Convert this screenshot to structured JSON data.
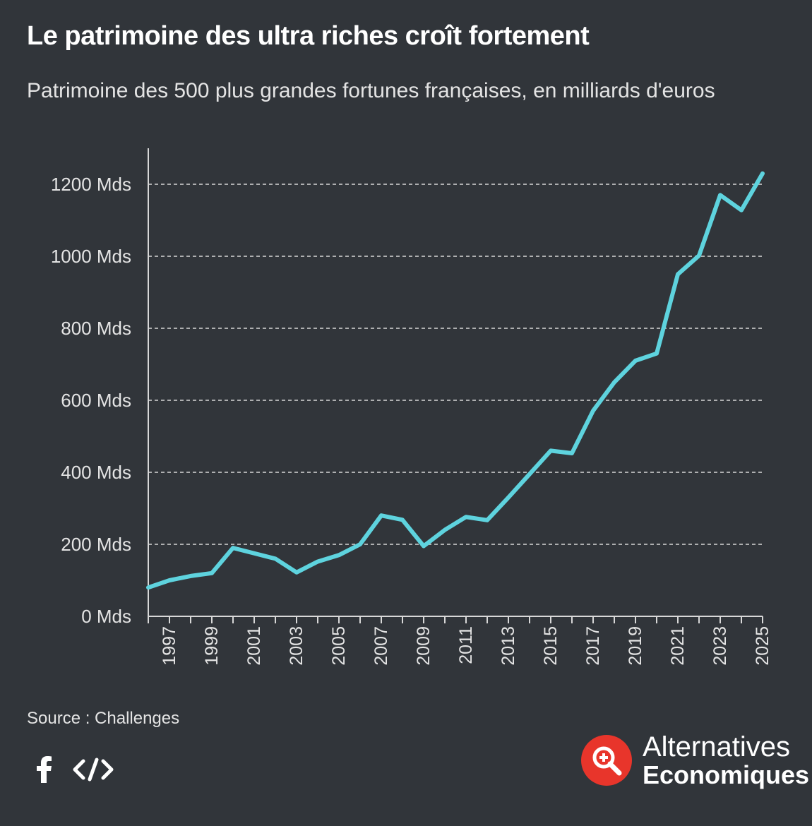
{
  "header": {
    "title": "Le patrimoine des ultra riches croît fortement",
    "subtitle": "Patrimoine des 500 plus grandes fortunes françaises, en milliards d'euros"
  },
  "footer": {
    "source": "Source : Challenges",
    "share_icons": [
      "facebook-icon",
      "embed-code-icon"
    ],
    "brand_line1": "Alternatives",
    "brand_line2": "Economiques"
  },
  "colors": {
    "background": "#31353a",
    "line": "#5ed3de",
    "grid": "#d8d8d8",
    "text": "#e4e4e4",
    "logo_red": "#e8352b"
  },
  "chart_data": {
    "type": "line",
    "title": "Le patrimoine des ultra riches croît fortement",
    "subtitle": "Patrimoine des 500 plus grandes fortunes françaises, en milliards d'euros",
    "x": [
      1996,
      1997,
      1998,
      1999,
      2000,
      2001,
      2002,
      2003,
      2004,
      2005,
      2006,
      2007,
      2008,
      2009,
      2010,
      2011,
      2012,
      2013,
      2014,
      2015,
      2016,
      2017,
      2018,
      2019,
      2020,
      2021,
      2022,
      2023,
      2024,
      2025
    ],
    "x_ticks": [
      1997,
      1999,
      2001,
      2003,
      2005,
      2007,
      2009,
      2011,
      2013,
      2015,
      2017,
      2019,
      2021,
      2023,
      2025
    ],
    "xlim": [
      1996,
      2025
    ],
    "series": [
      {
        "values": [
          80,
          100,
          112,
          120,
          190,
          175,
          160,
          122,
          152,
          170,
          200,
          280,
          268,
          195,
          240,
          276,
          267,
          330,
          395,
          460,
          453,
          571,
          650,
          710,
          730,
          950,
          1002,
          1170,
          1128,
          1230
        ]
      }
    ],
    "y_ticks": [
      0,
      200,
      400,
      600,
      800,
      1000,
      1200
    ],
    "y_tick_suffix": " Mds",
    "ylim": [
      0,
      1300
    ],
    "grid": "horizontal dashed",
    "legend": "none",
    "xlabel": "",
    "ylabel": ""
  }
}
